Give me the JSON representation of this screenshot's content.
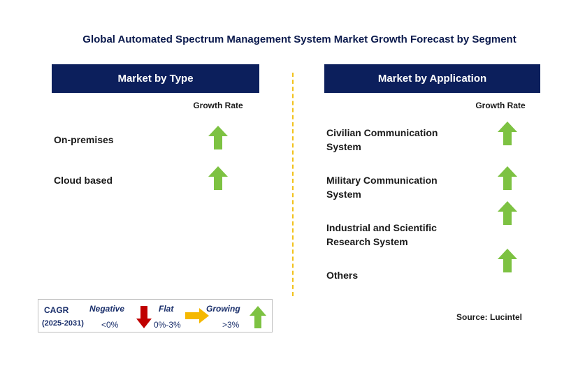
{
  "title": "Global Automated Spectrum Management System Market Growth Forecast by Segment",
  "left_panel": {
    "header": "Market by Type",
    "column_header": "Growth Rate",
    "segments": [
      {
        "label": "On-premises",
        "trend": "growing"
      },
      {
        "label": "Cloud based",
        "trend": "growing"
      }
    ]
  },
  "right_panel": {
    "header": "Market by Application",
    "column_header": "Growth Rate",
    "segments": [
      {
        "label_line1": "Civilian Communication",
        "label_line2": "System",
        "trend": "growing"
      },
      {
        "label_line1": "Military Communication",
        "label_line2": "System",
        "trend": "growing"
      },
      {
        "label_line1": "Industrial and Scientific",
        "label_line2": "Research System",
        "trend": "growing"
      },
      {
        "label_line1": "Others",
        "label_line2": "",
        "trend": "growing"
      }
    ]
  },
  "legend": {
    "cagr_label": "CAGR",
    "period": "(2025-2031)",
    "negative_label": "Negative",
    "negative_range": "<0%",
    "flat_label": "Flat",
    "flat_range": "0%-3%",
    "growing_label": "Growing",
    "growing_range": ">3%"
  },
  "source": "Source: Lucintel",
  "colors": {
    "header_bg": "#0c1f5c",
    "growing_arrow": "#7dc242",
    "negative_arrow": "#c00000",
    "flat_arrow": "#f5b800",
    "divider": "#f2c21b"
  },
  "icons": {
    "growing": "up-arrow-icon",
    "negative": "down-arrow-icon",
    "flat": "right-arrow-icon"
  }
}
